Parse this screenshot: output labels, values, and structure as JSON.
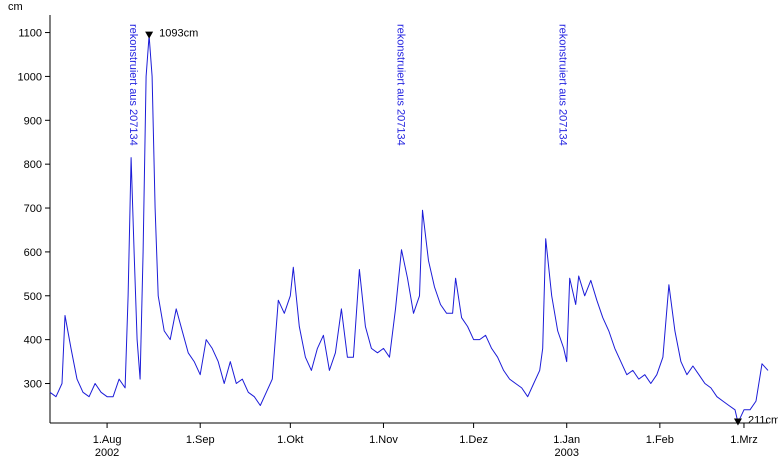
{
  "chart_data": {
    "type": "line",
    "y_label": "cm",
    "xlim": [
      "2002-07-13",
      "2003-03-09"
    ],
    "ylim": [
      210,
      1140
    ],
    "yticks": [
      300,
      400,
      500,
      600,
      700,
      800,
      900,
      {
        "value": 1000,
        "label": "1000"
      },
      {
        "value": 1100,
        "label": "1100"
      }
    ],
    "xticks": [
      {
        "value": "2002-08-01",
        "label": "1.Aug"
      },
      {
        "value": "2002-09-01",
        "label": "1.Sep"
      },
      {
        "value": "2002-10-01",
        "label": "1.Okt"
      },
      {
        "value": "2002-11-01",
        "label": "1.Nov"
      },
      {
        "value": "2002-12-01",
        "label": "1.Dez"
      },
      {
        "value": "2003-01-01",
        "label": "1.Jan"
      },
      {
        "value": "2003-02-01",
        "label": "1.Feb"
      },
      {
        "value": "2003-03-01",
        "label": "1.Mrz"
      }
    ],
    "x_year_labels": [
      {
        "value": "2002-08-01",
        "label": "2002"
      },
      {
        "value": "2003-01-01",
        "label": "2003"
      }
    ],
    "series": [
      {
        "color": "#1c1cd8",
        "x": [
          "2002-07-13",
          "2002-07-15",
          "2002-07-17",
          "2002-07-18",
          "2002-07-20",
          "2002-07-22",
          "2002-07-24",
          "2002-07-26",
          "2002-07-28",
          "2002-07-30",
          "2002-08-01",
          "2002-08-03",
          "2002-08-05",
          "2002-08-07",
          "2002-08-08",
          "2002-08-09",
          "2002-08-10",
          "2002-08-11",
          "2002-08-12",
          "2002-08-13",
          "2002-08-14",
          "2002-08-15",
          "2002-08-16",
          "2002-08-17",
          "2002-08-18",
          "2002-08-20",
          "2002-08-22",
          "2002-08-24",
          "2002-08-26",
          "2002-08-28",
          "2002-08-30",
          "2002-09-01",
          "2002-09-03",
          "2002-09-05",
          "2002-09-07",
          "2002-09-09",
          "2002-09-11",
          "2002-09-13",
          "2002-09-15",
          "2002-09-17",
          "2002-09-19",
          "2002-09-21",
          "2002-09-23",
          "2002-09-25",
          "2002-09-27",
          "2002-09-29",
          "2002-10-01",
          "2002-10-02",
          "2002-10-04",
          "2002-10-06",
          "2002-10-08",
          "2002-10-10",
          "2002-10-12",
          "2002-10-14",
          "2002-10-16",
          "2002-10-18",
          "2002-10-20",
          "2002-10-22",
          "2002-10-24",
          "2002-10-26",
          "2002-10-28",
          "2002-10-30",
          "2002-11-01",
          "2002-11-03",
          "2002-11-05",
          "2002-11-07",
          "2002-11-09",
          "2002-11-11",
          "2002-11-13",
          "2002-11-14",
          "2002-11-16",
          "2002-11-18",
          "2002-11-20",
          "2002-11-22",
          "2002-11-24",
          "2002-11-25",
          "2002-11-27",
          "2002-11-29",
          "2002-12-01",
          "2002-12-03",
          "2002-12-05",
          "2002-12-07",
          "2002-12-09",
          "2002-12-11",
          "2002-12-13",
          "2002-12-15",
          "2002-12-17",
          "2002-12-19",
          "2002-12-21",
          "2002-12-23",
          "2002-12-24",
          "2002-12-25",
          "2002-12-27",
          "2002-12-29",
          "2002-12-31",
          "2003-01-01",
          "2003-01-02",
          "2003-01-04",
          "2003-01-05",
          "2003-01-07",
          "2003-01-09",
          "2003-01-11",
          "2003-01-13",
          "2003-01-15",
          "2003-01-17",
          "2003-01-19",
          "2003-01-21",
          "2003-01-23",
          "2003-01-25",
          "2003-01-27",
          "2003-01-29",
          "2003-01-31",
          "2003-02-02",
          "2003-02-04",
          "2003-02-06",
          "2003-02-08",
          "2003-02-10",
          "2003-02-12",
          "2003-02-14",
          "2003-02-16",
          "2003-02-18",
          "2003-02-20",
          "2003-02-22",
          "2003-02-24",
          "2003-02-26",
          "2003-02-27",
          "2003-03-01",
          "2003-03-03",
          "2003-03-05",
          "2003-03-07",
          "2003-03-09"
        ],
        "values": [
          280,
          270,
          300,
          455,
          380,
          310,
          280,
          270,
          300,
          280,
          270,
          270,
          310,
          290,
          500,
          815,
          600,
          400,
          310,
          600,
          1000,
          1093,
          1000,
          700,
          500,
          420,
          400,
          470,
          420,
          370,
          350,
          320,
          400,
          380,
          350,
          300,
          350,
          300,
          310,
          280,
          270,
          250,
          280,
          310,
          490,
          460,
          500,
          565,
          430,
          360,
          330,
          380,
          410,
          330,
          370,
          470,
          360,
          360,
          560,
          430,
          380,
          370,
          380,
          360,
          470,
          605,
          540,
          460,
          500,
          695,
          580,
          520,
          480,
          460,
          460,
          540,
          450,
          430,
          400,
          400,
          410,
          380,
          360,
          330,
          310,
          300,
          290,
          270,
          300,
          330,
          380,
          630,
          500,
          420,
          380,
          350,
          540,
          480,
          545,
          500,
          535,
          490,
          450,
          420,
          380,
          350,
          320,
          330,
          310,
          320,
          300,
          320,
          360,
          525,
          420,
          350,
          320,
          340,
          320,
          300,
          290,
          270,
          260,
          250,
          240,
          211,
          240,
          240,
          260,
          345,
          330
        ]
      }
    ],
    "annotations": [
      {
        "x": "2002-08-15",
        "value": 1093,
        "label": "1093cm"
      },
      {
        "x": "2003-02-27",
        "value": 211,
        "label": "211cm"
      }
    ],
    "notes": [
      {
        "x": "2002-08-10",
        "text": "rekonstruiert aus 207134"
      },
      {
        "x": "2002-11-07",
        "text": "rekonstruiert aus 207134"
      },
      {
        "x": "2002-12-31",
        "text": "rekonstruiert aus 207134"
      }
    ]
  }
}
